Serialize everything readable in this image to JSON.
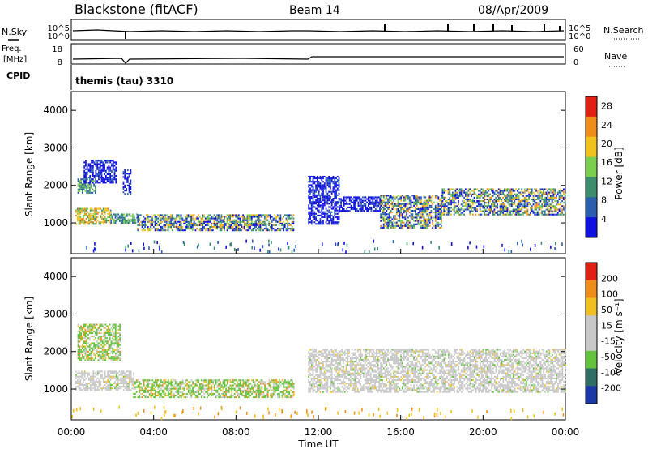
{
  "header": {
    "radar": "Blackstone (fitACF)",
    "beam": "Beam 14",
    "date": "08/Apr/2009"
  },
  "top_panels": {
    "nsky_label": "N.Sky",
    "nsky_ticks": [
      "10^5",
      "10^0"
    ],
    "nsearch_label": "N.Search",
    "freq_label_1": "Freq.",
    "freq_label_2": "[MHz]",
    "freq_ticks": [
      "18",
      "8"
    ],
    "nave_label": "Nave",
    "nave_ticks": [
      "60",
      "0"
    ],
    "cpid_label": "CPID",
    "cpid_text": "themis (tau) 3310"
  },
  "x_axis": {
    "label": "Time UT",
    "ticks": [
      "00:00",
      "04:00",
      "08:00",
      "12:00",
      "16:00",
      "20:00",
      "00:00"
    ],
    "range_hours": [
      0,
      24
    ]
  },
  "chart_data": [
    {
      "type": "heatmap",
      "title": "",
      "xlabel": "Time UT",
      "ylabel": "Slant Range [km]",
      "ylim": [
        180,
        4500
      ],
      "yticks": [
        "1000",
        "2000",
        "3000",
        "4000"
      ],
      "colorbar": {
        "label": "Power [dB]",
        "ticks": [
          "4",
          "8",
          "12",
          "16",
          "20",
          "24",
          "28"
        ],
        "range": [
          0,
          30
        ],
        "colors": [
          "#1010e0",
          "#2a5fb0",
          "#3c8d6e",
          "#7ad04e",
          "#f2c21c",
          "#f08c18",
          "#e02010"
        ]
      },
      "regions": [
        {
          "t": [
            0.3,
            1.2
          ],
          "r": [
            1780,
            2150
          ],
          "level": "mid"
        },
        {
          "t": [
            0.6,
            2.2
          ],
          "r": [
            2050,
            2650
          ],
          "level": "low"
        },
        {
          "t": [
            2.5,
            2.9
          ],
          "r": [
            1750,
            2400
          ],
          "level": "low"
        },
        {
          "t": [
            0.2,
            1.9
          ],
          "r": [
            950,
            1400
          ],
          "level": "high"
        },
        {
          "t": [
            1.9,
            3.2
          ],
          "r": [
            980,
            1250
          ],
          "level": "mid"
        },
        {
          "t": [
            3.2,
            10.8
          ],
          "r": [
            780,
            1230
          ],
          "level": "mixed"
        },
        {
          "t": [
            11.5,
            13.0
          ],
          "r": [
            950,
            2250
          ],
          "level": "low"
        },
        {
          "t": [
            13.0,
            15.0
          ],
          "r": [
            1300,
            1700
          ],
          "level": "low"
        },
        {
          "t": [
            15.0,
            18.0
          ],
          "r": [
            850,
            1750
          ],
          "level": "mixed"
        },
        {
          "t": [
            18.0,
            24.0
          ],
          "r": [
            1200,
            1900
          ],
          "level": "mixed"
        }
      ]
    },
    {
      "type": "heatmap",
      "title": "",
      "xlabel": "Time UT",
      "ylabel": "Slant Range [km]",
      "ylim": [
        180,
        4500
      ],
      "yticks": [
        "1000",
        "2000",
        "3000",
        "4000"
      ],
      "colorbar": {
        "label": "Velocity [m s⁻¹]",
        "ticks": [
          "200",
          "100",
          "50",
          "15",
          "-15",
          "-50",
          "-100",
          "-200"
        ],
        "range": [
          -250,
          250
        ],
        "colors": [
          "#1a38a8",
          "#2f6e64",
          "#63c43c",
          "#c8c8c8",
          "#c8c8c8",
          "#f0c020",
          "#f08c18",
          "#e02010"
        ]
      },
      "regions": [
        {
          "t": [
            0.3,
            2.4
          ],
          "r": [
            1750,
            2700
          ],
          "level": "green"
        },
        {
          "t": [
            0.2,
            3.0
          ],
          "r": [
            950,
            1450
          ],
          "level": "gray"
        },
        {
          "t": [
            3.0,
            10.8
          ],
          "r": [
            760,
            1230
          ],
          "level": "green"
        },
        {
          "t": [
            11.5,
            24.0
          ],
          "r": [
            900,
            2050
          ],
          "level": "gray"
        }
      ]
    }
  ]
}
